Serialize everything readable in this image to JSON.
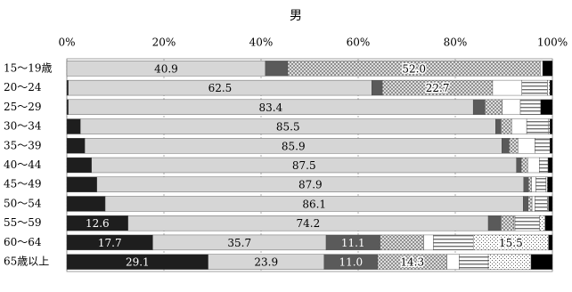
{
  "chart_data": {
    "type": "stacked-bar-horizontal",
    "title": "男",
    "categories": [
      "15～19歳",
      "20～24",
      "25～29",
      "30～34",
      "35～39",
      "40～44",
      "45～49",
      "50～54",
      "55～59",
      "60～64",
      "65歳以上"
    ],
    "xlim": [
      0,
      100
    ],
    "xticks": [
      {
        "value": 0,
        "label": "0%"
      },
      {
        "value": 20,
        "label": "20%"
      },
      {
        "value": 40,
        "label": "40%"
      },
      {
        "value": 60,
        "label": "60%"
      },
      {
        "value": 80,
        "label": "80%"
      },
      {
        "value": 100,
        "label": "100%"
      }
    ],
    "grid": true,
    "series": [
      {
        "color": "#1e1e1e",
        "pattern": "solid",
        "values": [
          0,
          0.3,
          0.3,
          2.8,
          3.7,
          5.1,
          6.2,
          7.9,
          12.6,
          17.7,
          29.1
        ],
        "value_labels": [
          null,
          null,
          null,
          null,
          null,
          null,
          null,
          null,
          "12.6",
          "17.7",
          "29.1"
        ]
      },
      {
        "color": "#d6d6d6",
        "pattern": "solid",
        "values": [
          40.9,
          62.5,
          83.4,
          85.5,
          85.9,
          87.5,
          87.9,
          86.1,
          74.2,
          35.7,
          23.9
        ],
        "value_labels": [
          "40.9",
          "62.5",
          "83.4",
          "85.5",
          "85.9",
          "87.5",
          "87.9",
          "86.1",
          "74.2",
          "35.7",
          "23.9"
        ]
      },
      {
        "color": "#5a5a5a",
        "pattern": "solid",
        "values": [
          4.6,
          2.2,
          2.4,
          1.1,
          1.5,
          1,
          1,
          1,
          2.6,
          11.1,
          11.0
        ],
        "value_labels": [
          null,
          null,
          null,
          null,
          null,
          null,
          null,
          null,
          null,
          "11.1",
          "11.0"
        ]
      },
      {
        "color": "#8a8a8a",
        "pattern": "crosshatch",
        "values": [
          52.0,
          22.7,
          3.6,
          2.2,
          1.8,
          1.3,
          0.6,
          0.8,
          2.7,
          9,
          14.3
        ],
        "value_labels": [
          "52.0",
          "22.7",
          null,
          null,
          null,
          null,
          null,
          null,
          null,
          null,
          "14.3"
        ]
      },
      {
        "color": "#ffffff",
        "pattern": "solid",
        "values": [
          0.5,
          6,
          3.7,
          3.1,
          3.5,
          2.4,
          0.9,
          0.6,
          0.2,
          2,
          2.5
        ]
      },
      {
        "color": "#707070",
        "pattern": "stripes",
        "values": [
          0,
          5.3,
          4.2,
          4.5,
          3.1,
          1.8,
          2.1,
          2.6,
          5.1,
          8.2,
          6
        ]
      },
      {
        "color": "#606060",
        "pattern": "dots",
        "values": [
          0,
          0.5,
          0,
          0.3,
          0,
          0,
          0.3,
          0.2,
          1.1,
          15.5,
          8.8
        ],
        "value_labels": [
          null,
          null,
          null,
          null,
          null,
          null,
          null,
          null,
          null,
          "15.5",
          null
        ]
      },
      {
        "color": "#000000",
        "pattern": "solid",
        "values": [
          2.0,
          0.5,
          2.4,
          0.5,
          0.5,
          0.9,
          1,
          0.8,
          1.5,
          0.8,
          4.4
        ]
      }
    ]
  }
}
